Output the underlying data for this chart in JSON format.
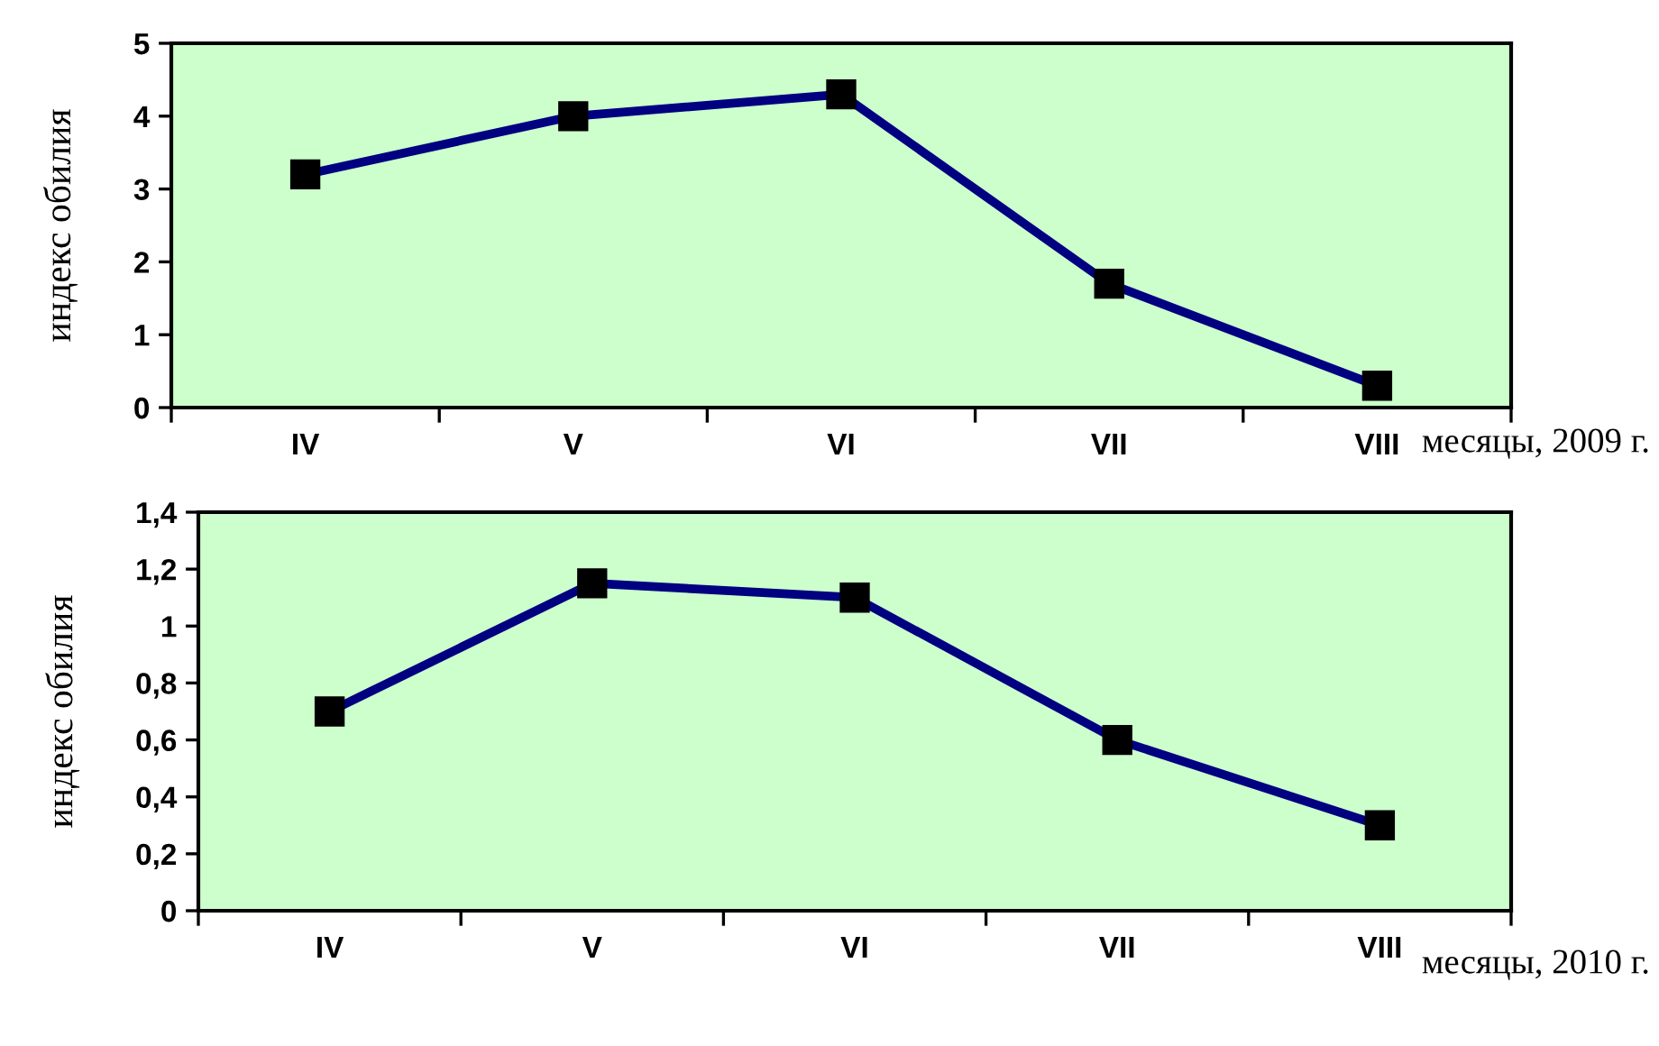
{
  "chart_data": [
    {
      "type": "line",
      "categories": [
        "IV",
        "V",
        "VI",
        "VII",
        "VIII"
      ],
      "xlabel": "месяцы, 2009 г.",
      "ylabel": "индекс обилия",
      "series": [
        {
          "color": "#000080",
          "values": [
            3.2,
            4.0,
            4.3,
            1.7,
            0.3
          ]
        }
      ],
      "ylim": [
        0,
        5
      ],
      "yticks": [
        0,
        1,
        2,
        3,
        4,
        5
      ],
      "marker": "square",
      "line_style": "solid",
      "grid": false,
      "legend": false
    },
    {
      "type": "line",
      "categories": [
        "IV",
        "V",
        "VI",
        "VII",
        "VIII"
      ],
      "xlabel": "месяцы, 2010 г.",
      "ylabel": "индекс обилия",
      "series": [
        {
          "color": "#000080",
          "values": [
            0.7,
            1.15,
            1.1,
            0.6,
            0.3
          ]
        }
      ],
      "ylim": [
        0,
        1.4
      ],
      "yticks": [
        0,
        {
          "value": 0.2,
          "label": "0,2"
        },
        {
          "value": 0.4,
          "label": "0,4"
        },
        {
          "value": 0.6,
          "label": "0,6"
        },
        {
          "value": 0.8,
          "label": "0,8"
        },
        1,
        {
          "value": 1.2,
          "label": "1,2"
        },
        {
          "value": 1.4,
          "label": "1,4"
        }
      ],
      "marker": "square",
      "line_style": "solid",
      "grid": false,
      "legend": false
    }
  ]
}
